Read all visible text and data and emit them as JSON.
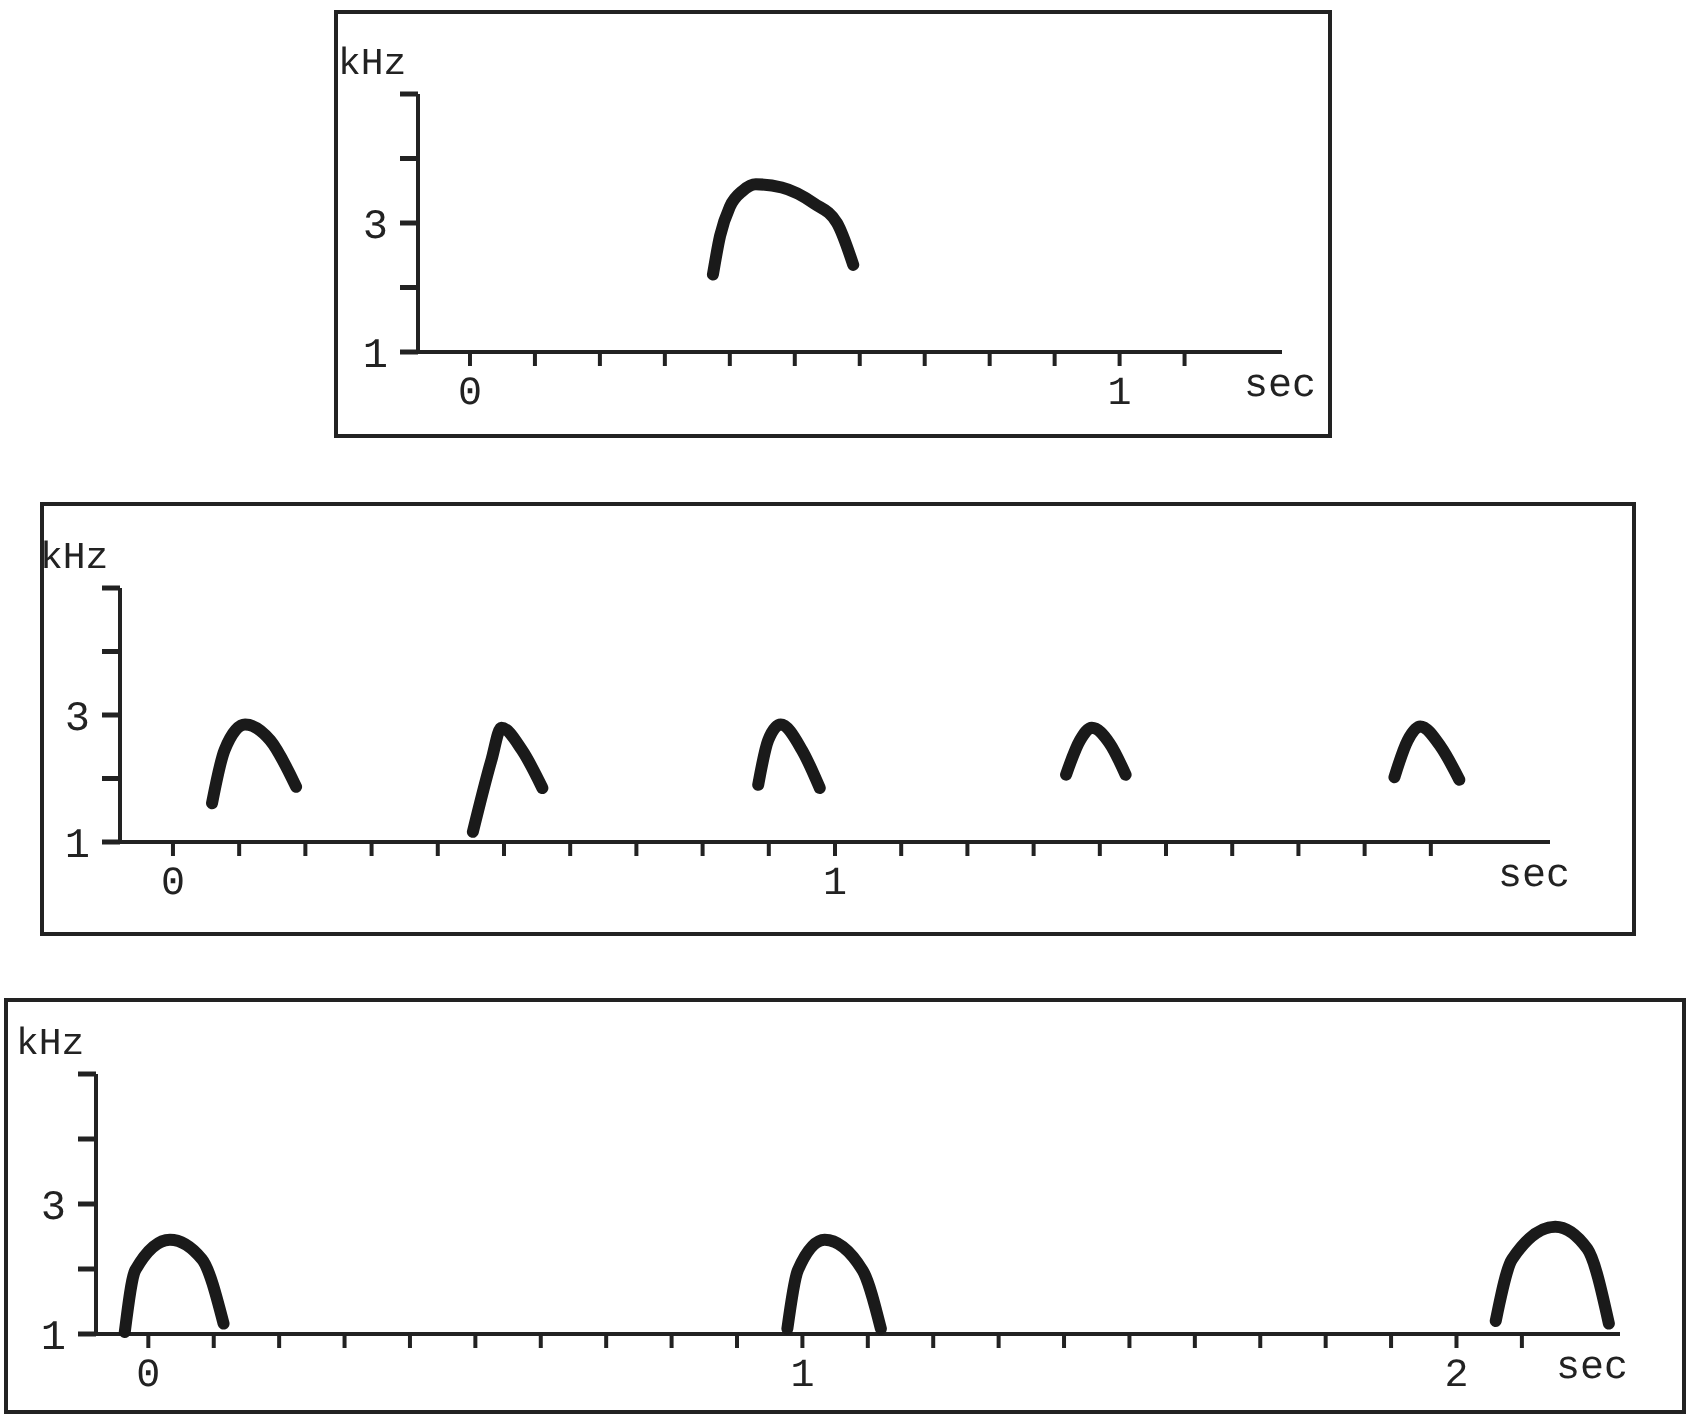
{
  "chart_data": [
    {
      "type": "line",
      "ylabel": "kHz",
      "xlabel": "sec",
      "xlim": [
        -0.08,
        1.25
      ],
      "ylim": [
        1,
        5
      ],
      "xticks": [
        {
          "value": 0,
          "label": "0"
        },
        {
          "value": 0.1,
          "label": null
        },
        {
          "value": 0.2,
          "label": null
        },
        {
          "value": 0.3,
          "label": null
        },
        {
          "value": 0.4,
          "label": null
        },
        {
          "value": 0.5,
          "label": null
        },
        {
          "value": 0.6,
          "label": null
        },
        {
          "value": 0.7,
          "label": null
        },
        {
          "value": 0.8,
          "label": null
        },
        {
          "value": 0.9,
          "label": null
        },
        {
          "value": 1,
          "label": "1"
        },
        {
          "value": 1.1,
          "label": null
        }
      ],
      "yticks": [
        {
          "value": 1,
          "label": "1"
        },
        {
          "value": 2,
          "label": null
        },
        {
          "value": 3,
          "label": "3"
        },
        {
          "value": 4,
          "label": null
        },
        {
          "value": 5,
          "label": null
        }
      ],
      "grid": false,
      "marker": "none",
      "line_style": "solid",
      "series": [
        {
          "color": "#1a1a1a",
          "x": [
            0.374,
            0.385,
            0.4,
            0.42,
            0.44,
            0.48,
            0.53,
            0.565,
            0.59
          ],
          "values": [
            2.2,
            2.8,
            3.25,
            3.5,
            3.6,
            3.55,
            3.3,
            3.0,
            2.35
          ]
        }
      ]
    },
    {
      "type": "line",
      "ylabel": "kHz",
      "xlabel": "sec",
      "xlim": [
        -0.08,
        2.08
      ],
      "ylim": [
        1,
        5
      ],
      "xticks": [
        {
          "value": 0,
          "label": "0"
        },
        {
          "value": 0.1,
          "label": null
        },
        {
          "value": 0.2,
          "label": null
        },
        {
          "value": 0.3,
          "label": null
        },
        {
          "value": 0.4,
          "label": null
        },
        {
          "value": 0.5,
          "label": null
        },
        {
          "value": 0.6,
          "label": null
        },
        {
          "value": 0.7,
          "label": null
        },
        {
          "value": 0.8,
          "label": null
        },
        {
          "value": 0.9,
          "label": null
        },
        {
          "value": 1,
          "label": "1"
        },
        {
          "value": 1.1,
          "label": null
        },
        {
          "value": 1.2,
          "label": null
        },
        {
          "value": 1.3,
          "label": null
        },
        {
          "value": 1.4,
          "label": null
        },
        {
          "value": 1.5,
          "label": null
        },
        {
          "value": 1.6,
          "label": null
        },
        {
          "value": 1.7,
          "label": null
        },
        {
          "value": 1.8,
          "label": null
        },
        {
          "value": 1.9,
          "label": null
        }
      ],
      "yticks": [
        {
          "value": 1,
          "label": "1"
        },
        {
          "value": 2,
          "label": null
        },
        {
          "value": 3,
          "label": "3"
        },
        {
          "value": 4,
          "label": null
        },
        {
          "value": 5,
          "label": null
        }
      ],
      "grid": false,
      "marker": "none",
      "line_style": "solid",
      "series": [
        {
          "color": "#1a1a1a",
          "x": [
            0.059,
            0.078,
            0.109,
            0.147,
            0.186
          ],
          "values": [
            1.61,
            2.45,
            2.85,
            2.6,
            1.87
          ]
        },
        {
          "color": "#1a1a1a",
          "x": [
            0.453,
            0.481,
            0.496,
            0.527,
            0.558
          ],
          "values": [
            1.16,
            2.29,
            2.8,
            2.45,
            1.85
          ]
        },
        {
          "color": "#1a1a1a",
          "x": [
            0.884,
            0.899,
            0.918,
            0.95,
            0.977
          ],
          "values": [
            1.9,
            2.6,
            2.85,
            2.45,
            1.85
          ]
        },
        {
          "color": "#1a1a1a",
          "x": [
            1.349,
            1.37,
            1.388,
            1.415,
            1.439
          ],
          "values": [
            2.06,
            2.6,
            2.8,
            2.55,
            2.06
          ]
        },
        {
          "color": "#1a1a1a",
          "x": [
            1.845,
            1.865,
            1.884,
            1.915,
            1.943
          ],
          "values": [
            2.02,
            2.6,
            2.82,
            2.5,
            1.98
          ]
        }
      ]
    },
    {
      "type": "line",
      "ylabel": "kHz",
      "xlabel": "sec",
      "xlim": [
        -0.08,
        2.25
      ],
      "ylim": [
        1,
        5
      ],
      "xticks": [
        {
          "value": 0,
          "label": "0"
        },
        {
          "value": 0.1,
          "label": null
        },
        {
          "value": 0.2,
          "label": null
        },
        {
          "value": 0.3,
          "label": null
        },
        {
          "value": 0.4,
          "label": null
        },
        {
          "value": 0.5,
          "label": null
        },
        {
          "value": 0.6,
          "label": null
        },
        {
          "value": 0.7,
          "label": null
        },
        {
          "value": 0.8,
          "label": null
        },
        {
          "value": 0.9,
          "label": null
        },
        {
          "value": 1,
          "label": "1"
        },
        {
          "value": 1.1,
          "label": null
        },
        {
          "value": 1.2,
          "label": null
        },
        {
          "value": 1.3,
          "label": null
        },
        {
          "value": 1.4,
          "label": null
        },
        {
          "value": 1.5,
          "label": null
        },
        {
          "value": 1.6,
          "label": null
        },
        {
          "value": 1.7,
          "label": null
        },
        {
          "value": 1.8,
          "label": null
        },
        {
          "value": 1.9,
          "label": null
        },
        {
          "value": 2,
          "label": "2"
        },
        {
          "value": 2.1,
          "label": null
        }
      ],
      "yticks": [
        {
          "value": 1,
          "label": "1"
        },
        {
          "value": 2,
          "label": null
        },
        {
          "value": 3,
          "label": "3"
        },
        {
          "value": 4,
          "label": null
        },
        {
          "value": 5,
          "label": null
        }
      ],
      "grid": false,
      "marker": "none",
      "line_style": "solid",
      "series": [
        {
          "color": "#1a1a1a",
          "x": [
            -0.036,
            -0.02,
            0.033,
            0.082,
            0.115
          ],
          "values": [
            1.03,
            1.98,
            2.45,
            2.15,
            1.16
          ]
        },
        {
          "color": "#1a1a1a",
          "x": [
            0.977,
            0.993,
            1.034,
            1.092,
            1.12
          ],
          "values": [
            1.08,
            1.98,
            2.45,
            1.98,
            1.08
          ]
        },
        {
          "color": "#1a1a1a",
          "x": [
            2.06,
            2.085,
            2.151,
            2.2,
            2.233
          ],
          "values": [
            1.2,
            2.15,
            2.65,
            2.31,
            1.16
          ]
        }
      ]
    }
  ]
}
